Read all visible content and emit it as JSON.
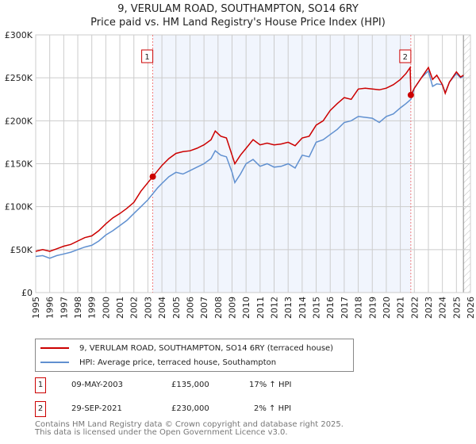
{
  "chart_data": {
    "type": "line",
    "title": "9, VERULAM ROAD, SOUTHAMPTON, SO14 6RY",
    "subtitle": "Price paid vs. HM Land Registry's House Price Index (HPI)",
    "xlim": [
      1995,
      2026
    ],
    "ylim": [
      0,
      300000
    ],
    "x_ticks": [
      "1995",
      "1996",
      "1997",
      "1998",
      "1999",
      "2000",
      "2001",
      "2002",
      "2003",
      "2004",
      "2005",
      "2006",
      "2007",
      "2008",
      "2009",
      "2010",
      "2011",
      "2012",
      "2013",
      "2014",
      "2015",
      "2016",
      "2017",
      "2018",
      "2019",
      "2020",
      "2021",
      "2022",
      "2023",
      "2024",
      "2025",
      "2026"
    ],
    "y_ticks": [
      {
        "value": 0,
        "label": "£0"
      },
      {
        "value": 50000,
        "label": "£50K"
      },
      {
        "value": 100000,
        "label": "£100K"
      },
      {
        "value": 150000,
        "label": "£150K"
      },
      {
        "value": 200000,
        "label": "£200K"
      },
      {
        "value": 250000,
        "label": "£250K"
      },
      {
        "value": 300000,
        "label": "£300K"
      }
    ],
    "grid": true,
    "shaded_range": [
      2003.35,
      2021.75
    ],
    "hatched_from": 2025.5,
    "series": [
      {
        "name": "9, VERULAM ROAD, SOUTHAMPTON, SO14 6RY (terraced house)",
        "color": "#cc0000",
        "x": [
          1995,
          1995.5,
          1996,
          1996.5,
          1997,
          1997.5,
          1998,
          1998.5,
          1999,
          1999.5,
          2000,
          2000.5,
          2001,
          2001.5,
          2002,
          2002.5,
          2003,
          2003.35,
          2003.7,
          2004,
          2004.5,
          2005,
          2005.5,
          2006,
          2006.5,
          2007,
          2007.5,
          2007.8,
          2008.2,
          2008.6,
          2009,
          2009.2,
          2009.6,
          2010,
          2010.5,
          2011,
          2011.5,
          2012,
          2012.5,
          2013,
          2013.5,
          2014,
          2014.5,
          2015,
          2015.5,
          2016,
          2016.5,
          2017,
          2017.5,
          2018,
          2018.5,
          2019,
          2019.5,
          2020,
          2020.5,
          2021,
          2021.4,
          2021.7,
          2021.75,
          2022,
          2022.5,
          2023,
          2023.3,
          2023.6,
          2024,
          2024.2,
          2024.5,
          2025,
          2025.3,
          2025.5
        ],
        "y": [
          48000,
          50000,
          48000,
          51000,
          54000,
          56000,
          60000,
          64000,
          66000,
          72000,
          80000,
          87000,
          92000,
          98000,
          105000,
          118000,
          128000,
          135000,
          142000,
          148000,
          156000,
          162000,
          164000,
          165000,
          168000,
          172000,
          178000,
          188000,
          182000,
          180000,
          160000,
          150000,
          160000,
          168000,
          178000,
          172000,
          174000,
          172000,
          173000,
          175000,
          171000,
          180000,
          182000,
          195000,
          200000,
          212000,
          220000,
          227000,
          225000,
          237000,
          238000,
          237000,
          236000,
          238000,
          242000,
          248000,
          255000,
          262000,
          230000,
          238000,
          250000,
          262000,
          248000,
          253000,
          242000,
          232000,
          245000,
          257000,
          251000,
          253000
        ]
      },
      {
        "name": "HPI: Average price, terraced house, Southampton",
        "color": "#6090d0",
        "x": [
          1995,
          1995.5,
          1996,
          1996.5,
          1997,
          1997.5,
          1998,
          1998.5,
          1999,
          1999.5,
          2000,
          2000.5,
          2001,
          2001.5,
          2002,
          2002.5,
          2003,
          2003.35,
          2003.7,
          2004,
          2004.5,
          2005,
          2005.5,
          2006,
          2006.5,
          2007,
          2007.5,
          2007.8,
          2008.2,
          2008.6,
          2009,
          2009.2,
          2009.6,
          2010,
          2010.5,
          2011,
          2011.5,
          2012,
          2012.5,
          2013,
          2013.5,
          2014,
          2014.5,
          2015,
          2015.5,
          2016,
          2016.5,
          2017,
          2017.5,
          2018,
          2018.5,
          2019,
          2019.5,
          2020,
          2020.5,
          2021,
          2021.4,
          2021.75,
          2022,
          2022.5,
          2023,
          2023.3,
          2023.6,
          2024,
          2024.2,
          2024.5,
          2025,
          2025.3,
          2025.5
        ],
        "y": [
          42000,
          43000,
          40000,
          43000,
          45000,
          47000,
          50000,
          53000,
          55000,
          60000,
          67000,
          72000,
          78000,
          84000,
          92000,
          100000,
          108000,
          115000,
          122000,
          127000,
          135000,
          140000,
          138000,
          142000,
          146000,
          150000,
          156000,
          165000,
          160000,
          158000,
          140000,
          128000,
          138000,
          150000,
          155000,
          147000,
          150000,
          146000,
          147000,
          150000,
          145000,
          160000,
          158000,
          175000,
          178000,
          184000,
          190000,
          198000,
          200000,
          205000,
          204000,
          203000,
          198000,
          205000,
          208000,
          215000,
          220000,
          225000,
          238000,
          250000,
          258000,
          240000,
          243000,
          242000,
          233000,
          245000,
          255000,
          250000,
          252000
        ]
      }
    ],
    "sales": [
      {
        "label": "1",
        "x": 2003.35,
        "y": 135000,
        "date": "09-MAY-2003",
        "price": "£135,000",
        "hpi": "17% ↑ HPI"
      },
      {
        "label": "2",
        "x": 2021.75,
        "y": 230000,
        "date": "29-SEP-2021",
        "price": "£230,000",
        "hpi": "2% ↑ HPI"
      }
    ]
  },
  "footer": {
    "line1": "Contains HM Land Registry data © Crown copyright and database right 2025.",
    "line2": "This data is licensed under the Open Government Licence v3.0."
  }
}
